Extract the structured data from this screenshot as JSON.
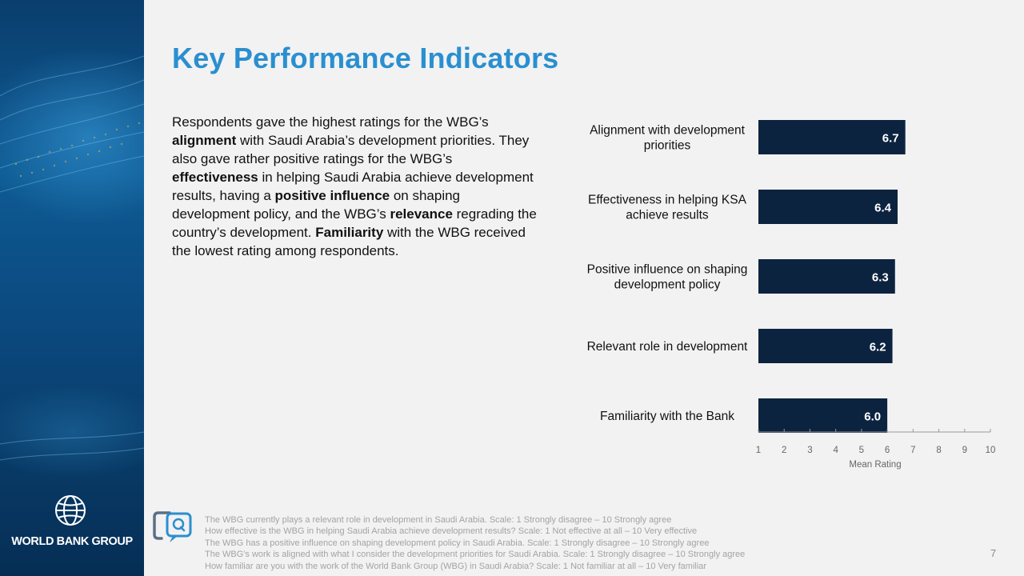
{
  "brand": {
    "name": "WORLD BANK GROUP",
    "logo_icon": "globe-logo-icon"
  },
  "title": "Key Performance Indicators",
  "summary": {
    "s1": "Respondents gave the highest ratings for the WBG’s ",
    "b1": "alignment",
    "s2": " with Saudi Arabia’s development priorities. They also gave rather positive ratings for the WBG’s ",
    "b2": "effectiveness",
    "s3": " in helping Saudi Arabia achieve development results, having a ",
    "b3": "positive influence",
    "s4": " on shaping development policy, and the WBG’s ",
    "b4": "relevance",
    "s5": " regrading the country’s development. ",
    "b5": "Familiarity",
    "s6": " with the WBG received the lowest rating among respondents."
  },
  "chart_data": {
    "type": "bar",
    "orientation": "horizontal",
    "categories": [
      [
        "Alignment with development",
        "priorities"
      ],
      [
        "Effectiveness in helping KSA",
        "achieve results"
      ],
      [
        "Positive influence on shaping",
        "development policy"
      ],
      [
        "Relevant role in development"
      ],
      [
        "Familiarity with the Bank"
      ]
    ],
    "values": [
      6.7,
      6.4,
      6.3,
      6.2,
      6.0
    ],
    "value_labels": [
      "6.7",
      "6.4",
      "6.3",
      "6.2",
      "6.0"
    ],
    "xlabel": "Mean Rating",
    "xlim": [
      1,
      10
    ],
    "xticks": [
      1,
      2,
      3,
      4,
      5,
      6,
      7,
      8,
      9,
      10
    ],
    "bar_color": "#0c2340",
    "label_color": "#ffffff",
    "grid": false
  },
  "footnotes": {
    "icon": "survey-question-icon",
    "lines": [
      "The WBG currently plays a relevant role in development in Saudi Arabia. Scale: 1 Strongly disagree – 10 Strongly agree",
      "How effective is the WBG in helping Saudi Arabia achieve development results? Scale: 1 Not effective at all – 10 Very effective",
      "The WBG has a positive influence on shaping development policy in Saudi Arabia. Scale: 1 Strongly disagree – 10 Strongly agree",
      "The WBG's work is aligned with what I consider the development priorities for Saudi Arabia. Scale: 1 Strongly disagree – 10 Strongly agree",
      "How familiar are you with the work of the World Bank Group (WBG) in Saudi Arabia? Scale: 1 Not familiar at all – 10 Very familiar"
    ]
  },
  "page_number": "7"
}
